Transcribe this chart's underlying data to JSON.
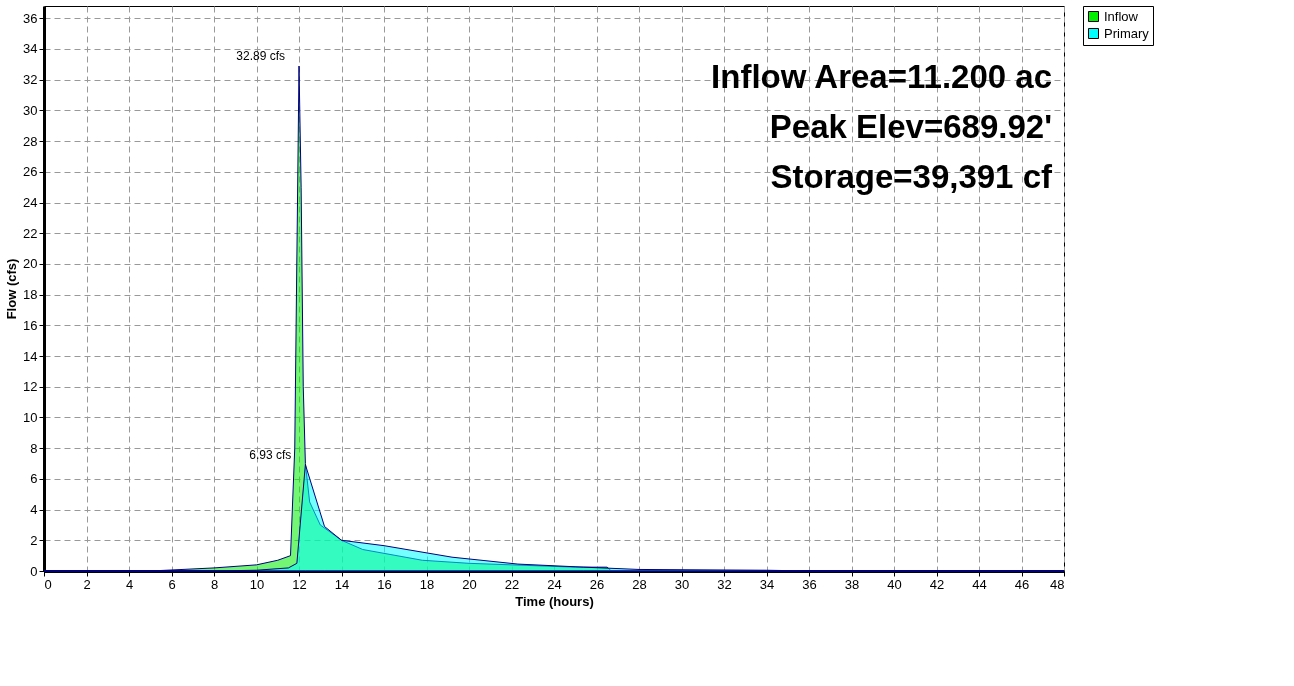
{
  "chart_data": {
    "type": "area",
    "xlabel": "Time  (hours)",
    "ylabel": "Flow  (cfs)",
    "xlim": [
      0,
      48
    ],
    "ylim": [
      0,
      36.8
    ],
    "xticks": [
      0,
      2,
      4,
      6,
      8,
      10,
      12,
      14,
      16,
      18,
      20,
      22,
      24,
      26,
      28,
      30,
      32,
      34,
      36,
      38,
      40,
      42,
      44,
      46,
      48
    ],
    "yticks": [
      0,
      2,
      4,
      6,
      8,
      10,
      12,
      14,
      16,
      18,
      20,
      22,
      24,
      26,
      28,
      30,
      32,
      34,
      36
    ],
    "grid": true,
    "legend": "top right",
    "series": [
      {
        "name": "Inflow",
        "color": "#00ee00",
        "x": [
          0,
          5,
          8,
          10,
          11,
          11.6,
          11.8,
          12.0,
          12.1,
          12.2,
          12.3,
          12.5,
          13,
          14,
          15,
          17.8,
          20,
          25,
          26.5,
          26.7,
          30,
          48
        ],
        "values": [
          0,
          0,
          0.2,
          0.4,
          0.7,
          1.0,
          8,
          32.89,
          25,
          12,
          7,
          4.5,
          3.0,
          2.0,
          1.4,
          0.7,
          0.5,
          0.25,
          0.25,
          0,
          0,
          0
        ]
      },
      {
        "name": "Primary",
        "color": "#00ffff",
        "x": [
          0,
          8,
          10,
          11.5,
          11.9,
          12.3,
          13.2,
          14,
          16,
          19.2,
          22.3,
          25.4,
          28,
          34,
          36,
          48
        ],
        "values": [
          0,
          0,
          0.05,
          0.2,
          0.5,
          6.93,
          2.9,
          2.0,
          1.65,
          0.9,
          0.45,
          0.25,
          0.1,
          0.05,
          0,
          0
        ]
      }
    ],
    "annotations": [
      {
        "text": "32.89 cfs",
        "x": 12.0,
        "y": 32.89
      },
      {
        "text": "6.93 cfs",
        "x": 12.3,
        "y": 6.93
      },
      "Inflow Area=11.200 ac",
      "Peak Elev=689.92'",
      "Storage=39,391 cf"
    ]
  }
}
